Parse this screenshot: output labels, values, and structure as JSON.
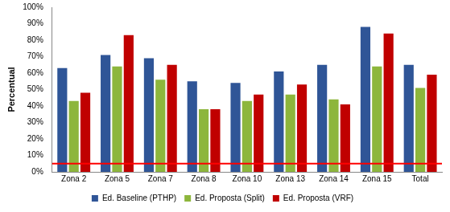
{
  "chart_data": {
    "type": "bar",
    "y_label": "Percentual",
    "categories": [
      "Zona 2",
      "Zona 5",
      "Zona 7",
      "Zona 8",
      "Zona 10",
      "Zona 13",
      "Zona 14",
      "Zona 15",
      "Total"
    ],
    "series": [
      {
        "name": "Ed. Baseline (PTHP)",
        "color": "#2f5597",
        "values": [
          63,
          71,
          69,
          55,
          54,
          61,
          65,
          88,
          65
        ]
      },
      {
        "name": "Ed. Proposta (Split)",
        "color": "#8db63c",
        "values": [
          43,
          64,
          56,
          38,
          43,
          47,
          44,
          64,
          51
        ]
      },
      {
        "name": "Ed. Proposta (VRF)",
        "color": "#c00000",
        "values": [
          48,
          83,
          65,
          38,
          47,
          53,
          41,
          84,
          59
        ]
      }
    ],
    "reference_line": {
      "value": 5,
      "color": "#ff0000"
    },
    "ylim": [
      0,
      100
    ],
    "yticks": [
      {
        "value": 0,
        "label": "0%"
      },
      {
        "value": 10,
        "label": "10%"
      },
      {
        "value": 20,
        "label": "20%"
      },
      {
        "value": 30,
        "label": "30%"
      },
      {
        "value": 40,
        "label": "40%"
      },
      {
        "value": 50,
        "label": "50%"
      },
      {
        "value": 60,
        "label": "60%"
      },
      {
        "value": 70,
        "label": "70%"
      },
      {
        "value": 80,
        "label": "80%"
      },
      {
        "value": 90,
        "label": "90%"
      },
      {
        "value": 100,
        "label": "100%"
      }
    ],
    "grid": false,
    "legend": "bottom"
  }
}
